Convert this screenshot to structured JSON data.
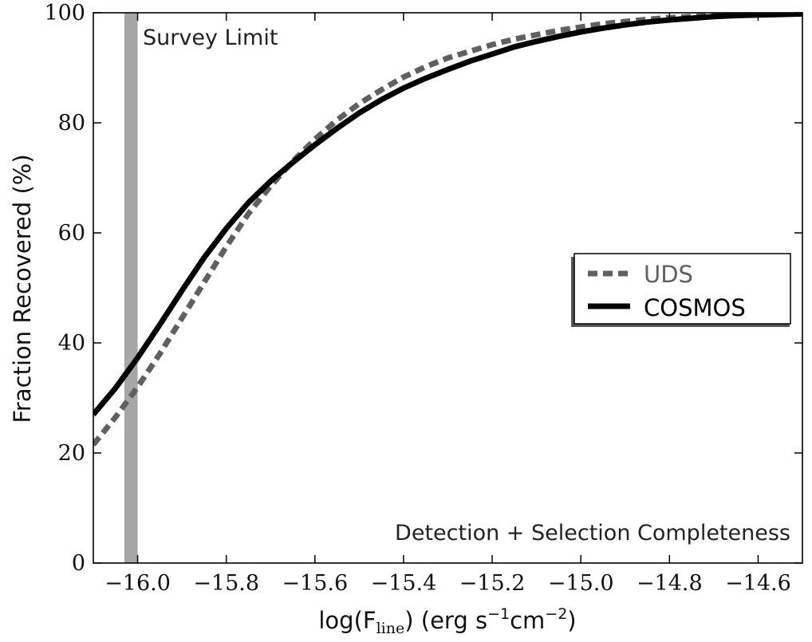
{
  "chart_data": {
    "type": "line",
    "title": "",
    "xlabel": {
      "prefix": "log(F",
      "subscript": "line",
      "middle": ") (erg s",
      "exp1": "−1",
      "unit2": "cm",
      "exp2": "−2",
      "suffix": ")"
    },
    "ylabel": "Fraction Recovered (%)",
    "xlim": [
      -16.1,
      -14.5
    ],
    "ylim": [
      0,
      100
    ],
    "xticks": [
      -16.0,
      -15.8,
      -15.6,
      -15.4,
      -15.2,
      -15.0,
      -14.8,
      -14.6
    ],
    "xtick_labels": [
      "−16.0",
      "−15.8",
      "−15.6",
      "−15.4",
      "−15.2",
      "−15.0",
      "−14.8",
      "−14.6"
    ],
    "yticks": [
      0,
      20,
      40,
      60,
      80,
      100
    ],
    "ytick_labels": [
      "0",
      "20",
      "40",
      "60",
      "80",
      "100"
    ],
    "grid": false,
    "legend_position": "center-right",
    "series": [
      {
        "name": "UDS",
        "style": "dashed",
        "color": "#606060",
        "x": [
          -16.1,
          -16.05,
          -16.0,
          -15.95,
          -15.9,
          -15.85,
          -15.8,
          -15.75,
          -15.7,
          -15.65,
          -15.6,
          -15.55,
          -15.5,
          -15.45,
          -15.4,
          -15.35,
          -15.3,
          -15.25,
          -15.2,
          -15.15,
          -15.1,
          -15.05,
          -15.0,
          -14.95,
          -14.9,
          -14.85,
          -14.8,
          -14.75,
          -14.7,
          -14.65,
          -14.6,
          -14.55,
          -14.5
        ],
        "y": [
          21.5,
          26.5,
          32,
          38,
          44.5,
          51,
          57.5,
          63.5,
          68.5,
          73,
          77,
          80.5,
          83.5,
          86,
          88.3,
          90.2,
          91.8,
          93,
          94.2,
          95.2,
          96,
          96.8,
          97.4,
          98,
          98.4,
          98.8,
          99.1,
          99.3,
          99.5,
          99.6,
          99.7,
          99.8,
          99.8
        ]
      },
      {
        "name": "COSMOS",
        "style": "solid",
        "color": "#000000",
        "x": [
          -16.1,
          -16.05,
          -16.0,
          -15.95,
          -15.9,
          -15.85,
          -15.8,
          -15.75,
          -15.7,
          -15.65,
          -15.6,
          -15.55,
          -15.5,
          -15.45,
          -15.4,
          -15.35,
          -15.3,
          -15.25,
          -15.2,
          -15.15,
          -15.1,
          -15.05,
          -15.0,
          -14.95,
          -14.9,
          -14.85,
          -14.8,
          -14.75,
          -14.7,
          -14.65,
          -14.6,
          -14.55,
          -14.5
        ],
        "y": [
          27,
          31.8,
          37.3,
          43.3,
          49.5,
          55.5,
          60.8,
          65.5,
          69.4,
          72.8,
          76,
          79,
          81.8,
          84.2,
          86.3,
          88.1,
          89.7,
          91.2,
          92.5,
          93.8,
          94.8,
          95.7,
          96.5,
          97.2,
          97.8,
          98.3,
          98.7,
          99,
          99.3,
          99.5,
          99.6,
          99.7,
          99.8
        ]
      }
    ],
    "vertical_band": {
      "x_range": [
        -16.03,
        -16.0
      ],
      "color": "#a6a6a6",
      "label": "Survey Limit"
    },
    "annotation": "Detection + Selection Completeness"
  }
}
